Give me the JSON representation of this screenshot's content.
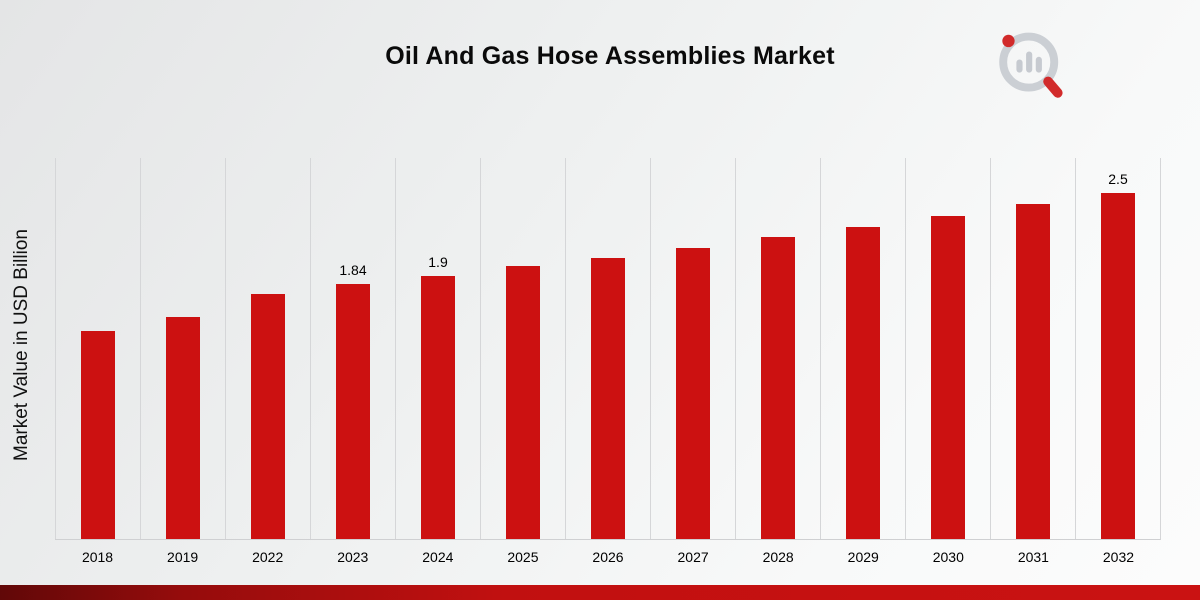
{
  "page": {
    "title": "Oil And Gas Hose Assemblies Market"
  },
  "chart_data": {
    "type": "bar",
    "title": "Oil And Gas Hose Assemblies Market",
    "xlabel": "",
    "ylabel": "Market Value in USD Billion",
    "categories": [
      "2018",
      "2019",
      "2022",
      "2023",
      "2024",
      "2025",
      "2026",
      "2027",
      "2028",
      "2029",
      "2030",
      "2031",
      "2032"
    ],
    "values": [
      1.5,
      1.6,
      1.77,
      1.84,
      1.9,
      1.97,
      2.03,
      2.1,
      2.18,
      2.25,
      2.33,
      2.42,
      2.5
    ],
    "data_labels": [
      "",
      "",
      "",
      "1.84",
      "1.9",
      "",
      "",
      "",
      "",
      "",
      "",
      "",
      "2.5"
    ],
    "ylim": [
      0,
      2.75
    ],
    "grid": "vertical",
    "legend": "none",
    "bar_color": "#cc1111"
  },
  "branding": {
    "logo_icon": "bar-chart-magnifier-logo",
    "logo_gray": "#c7cbd1",
    "logo_red": "#ce1515"
  },
  "colors": {
    "bar": "#cc1111",
    "footer_gradient_start": "#610808",
    "footer_gradient_end": "#ca1212",
    "background_start": "#e4e5e6",
    "background_end": "#fcfcfc"
  }
}
